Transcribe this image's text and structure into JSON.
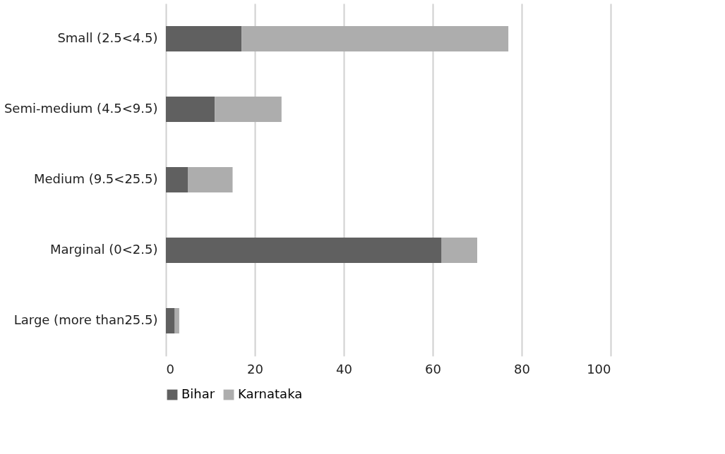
{
  "chart_data": {
    "type": "bar",
    "orientation": "horizontal",
    "stacked": true,
    "categories": [
      "Small (2.5<4.5)",
      "Semi-medium (4.5<9.5)",
      "Medium (9.5<25.5)",
      "Marginal (0<2.5)",
      "Large (more than25.5)"
    ],
    "series": [
      {
        "name": "Bihar",
        "color": "#606060",
        "values": [
          17,
          11,
          5,
          62,
          2
        ]
      },
      {
        "name": "Karnataka",
        "color": "#adadad",
        "values": [
          60,
          15,
          10,
          8,
          1
        ]
      }
    ],
    "xlim": [
      0,
      100
    ],
    "xticks": [
      0,
      20,
      40,
      60,
      80,
      100
    ],
    "grid": "x",
    "legend": "bottom"
  }
}
